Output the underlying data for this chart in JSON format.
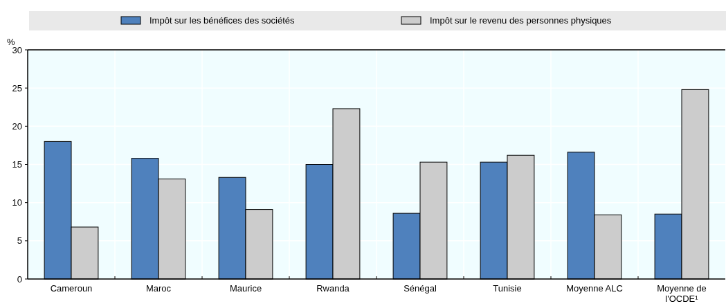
{
  "chart_data": {
    "type": "bar",
    "ylabel": "%",
    "categories": [
      "Cameroun",
      "Maroc",
      "Maurice",
      "Rwanda",
      "Sénégal",
      "Tunisie",
      "Moyenne ALC",
      "Moyenne de l'OCDE¹"
    ],
    "series": [
      {
        "name": "Impôt sur les bénéfices des sociétés",
        "color": "#4f81bd",
        "values": [
          18.0,
          15.8,
          13.3,
          15.0,
          8.6,
          15.3,
          16.6,
          8.5
        ]
      },
      {
        "name": "Impôt sur le revenu des personnes physiques",
        "color": "#cccccc",
        "values": [
          6.8,
          13.1,
          9.1,
          22.3,
          15.3,
          16.2,
          8.4,
          24.8
        ]
      }
    ],
    "ylim": [
      0,
      30
    ],
    "yticks": [
      0,
      5,
      10,
      15,
      20,
      25,
      30
    ],
    "grid": true,
    "legend": "top"
  }
}
